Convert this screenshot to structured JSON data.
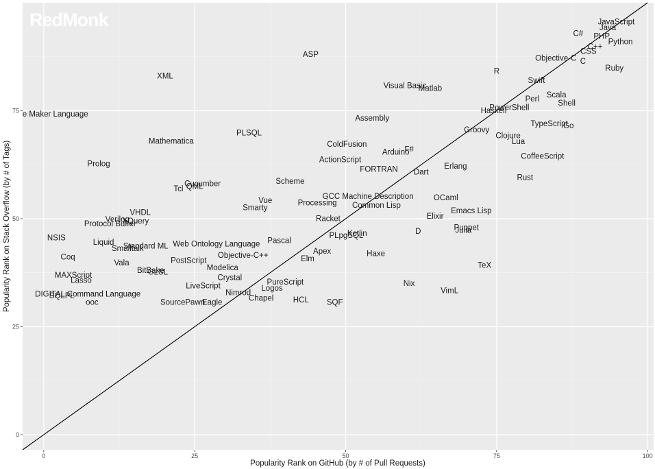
{
  "brand": "RedMonk",
  "chart_data": {
    "type": "scatter",
    "title": "",
    "xlabel": "Popularity Rank on GitHub (by # of Pull Requests)",
    "ylabel": "Popularity Rank on Stack Overflow (by # of Tags)",
    "xlim": [
      -3.5,
      101
    ],
    "ylim": [
      -3.5,
      100
    ],
    "x_ticks": [
      "0",
      "25",
      "50",
      "75",
      "100"
    ],
    "y_ticks": [
      "0",
      "25",
      "50",
      "75"
    ],
    "grid": true,
    "reference_line": "y = x",
    "colors": {
      "panel": "#ebebeb",
      "grid_major": "#ffffff",
      "text": "#1a1a1a",
      "tick_text": "#4d4d4d",
      "line": "#000000"
    },
    "points": [
      {
        "label": "JavaScript",
        "x": 94.8,
        "y": 95.6
      },
      {
        "label": "Java",
        "x": 93.4,
        "y": 94.3
      },
      {
        "label": "C#",
        "x": 88.5,
        "y": 92.9
      },
      {
        "label": "PHP",
        "x": 92.4,
        "y": 92.3
      },
      {
        "label": "Python",
        "x": 95.5,
        "y": 91.0
      },
      {
        "label": "C++",
        "x": 91.3,
        "y": 89.9
      },
      {
        "label": "CSS",
        "x": 90.2,
        "y": 88.8
      },
      {
        "label": "Objective-C",
        "x": 84.8,
        "y": 87.2
      },
      {
        "label": "C",
        "x": 89.3,
        "y": 86.5
      },
      {
        "label": "Ruby",
        "x": 94.5,
        "y": 84.9
      },
      {
        "label": "ASP",
        "x": 44.2,
        "y": 88.1
      },
      {
        "label": "R",
        "x": 75.0,
        "y": 84.2
      },
      {
        "label": "XML",
        "x": 20.1,
        "y": 83.1
      },
      {
        "label": "Swift",
        "x": 81.6,
        "y": 82.1
      },
      {
        "label": "Visual Basic",
        "x": 59.8,
        "y": 80.9
      },
      {
        "label": "Matlab",
        "x": 64.0,
        "y": 80.2
      },
      {
        "label": "Scala",
        "x": 84.9,
        "y": 78.7
      },
      {
        "label": "Perl",
        "x": 80.9,
        "y": 77.8
      },
      {
        "label": "Shell",
        "x": 86.6,
        "y": 76.8
      },
      {
        "label": "PowerShell",
        "x": 77.1,
        "y": 75.8
      },
      {
        "label": "Haskell",
        "x": 74.5,
        "y": 75.1
      },
      {
        "label": "Game Maker Language",
        "x": 0.5,
        "y": 74.3
      },
      {
        "label": "Assembly",
        "x": 54.4,
        "y": 73.3
      },
      {
        "label": "TypeScript",
        "x": 83.7,
        "y": 72.1
      },
      {
        "label": "Go",
        "x": 86.9,
        "y": 71.6
      },
      {
        "label": "Groovy",
        "x": 71.7,
        "y": 70.6
      },
      {
        "label": "PLSQL",
        "x": 34.0,
        "y": 69.9
      },
      {
        "label": "Clojure",
        "x": 76.9,
        "y": 69.3
      },
      {
        "label": "Mathematica",
        "x": 21.1,
        "y": 68.0
      },
      {
        "label": "Lua",
        "x": 78.6,
        "y": 67.9
      },
      {
        "label": "ColdFusion",
        "x": 50.2,
        "y": 67.3
      },
      {
        "label": "F#",
        "x": 60.5,
        "y": 66.1
      },
      {
        "label": "Arduino",
        "x": 58.3,
        "y": 65.5
      },
      {
        "label": "CoffeeScript",
        "x": 82.6,
        "y": 64.5
      },
      {
        "label": "ActionScript",
        "x": 49.1,
        "y": 63.7
      },
      {
        "label": "Prolog",
        "x": 9.1,
        "y": 62.8
      },
      {
        "label": "Erlang",
        "x": 68.2,
        "y": 62.2
      },
      {
        "label": "FORTRAN",
        "x": 55.5,
        "y": 61.5
      },
      {
        "label": "Dart",
        "x": 62.5,
        "y": 60.9
      },
      {
        "label": "Rust",
        "x": 79.7,
        "y": 59.6
      },
      {
        "label": "Scheme",
        "x": 40.8,
        "y": 58.7
      },
      {
        "label": "Cucumber",
        "x": 26.3,
        "y": 58.2
      },
      {
        "label": "QML",
        "x": 25.0,
        "y": 57.5
      },
      {
        "label": "Tcl",
        "x": 22.3,
        "y": 57.0
      },
      {
        "label": "GCC Machine Description",
        "x": 53.7,
        "y": 55.2
      },
      {
        "label": "OCaml",
        "x": 66.6,
        "y": 54.9
      },
      {
        "label": "Vue",
        "x": 36.7,
        "y": 54.3
      },
      {
        "label": "Processing",
        "x": 45.3,
        "y": 53.7
      },
      {
        "label": "Common Lisp",
        "x": 55.1,
        "y": 53.2
      },
      {
        "label": "Smarty",
        "x": 35.0,
        "y": 52.6
      },
      {
        "label": "Emacs Lisp",
        "x": 70.8,
        "y": 51.9
      },
      {
        "label": "VHDL",
        "x": 16.0,
        "y": 51.5
      },
      {
        "label": "Elixir",
        "x": 64.8,
        "y": 50.6
      },
      {
        "label": "Racket",
        "x": 47.1,
        "y": 50.1
      },
      {
        "label": "Verilog",
        "x": 12.2,
        "y": 49.9
      },
      {
        "label": "XQuery",
        "x": 15.2,
        "y": 49.5
      },
      {
        "label": "Protocol Buffer",
        "x": 11.0,
        "y": 48.9
      },
      {
        "label": "Puppet",
        "x": 70.0,
        "y": 48.0
      },
      {
        "label": "Julia",
        "x": 69.5,
        "y": 47.4
      },
      {
        "label": "D",
        "x": 62.0,
        "y": 47.1
      },
      {
        "label": "Kotlin",
        "x": 51.9,
        "y": 46.7
      },
      {
        "label": "PLpgSQL",
        "x": 50.1,
        "y": 46.2
      },
      {
        "label": "NSIS",
        "x": 2.1,
        "y": 45.6
      },
      {
        "label": "Pascal",
        "x": 39.0,
        "y": 45.0
      },
      {
        "label": "Liquid",
        "x": 9.9,
        "y": 44.6
      },
      {
        "label": "Web Ontology Language",
        "x": 28.6,
        "y": 44.2
      },
      {
        "label": "Standard ML",
        "x": 16.9,
        "y": 43.7
      },
      {
        "label": "Smalltalk",
        "x": 13.9,
        "y": 43.2
      },
      {
        "label": "Apex",
        "x": 46.1,
        "y": 42.5
      },
      {
        "label": "Haxe",
        "x": 55.0,
        "y": 42.0
      },
      {
        "label": "Objective-C++",
        "x": 33.0,
        "y": 41.6
      },
      {
        "label": "Coq",
        "x": 4.0,
        "y": 41.2
      },
      {
        "label": "Elm",
        "x": 43.7,
        "y": 40.8
      },
      {
        "label": "PostScript",
        "x": 24.0,
        "y": 40.4
      },
      {
        "label": "Vala",
        "x": 12.9,
        "y": 39.8
      },
      {
        "label": "TeX",
        "x": 73.0,
        "y": 39.3
      },
      {
        "label": "Modelica",
        "x": 29.6,
        "y": 38.7
      },
      {
        "label": "BitBake",
        "x": 17.7,
        "y": 38.1
      },
      {
        "label": "GLSL",
        "x": 18.9,
        "y": 37.7
      },
      {
        "label": "MAXScript",
        "x": 4.9,
        "y": 37.0
      },
      {
        "label": "Crystal",
        "x": 30.8,
        "y": 36.4
      },
      {
        "label": "Lasso",
        "x": 6.2,
        "y": 35.8
      },
      {
        "label": "PureScript",
        "x": 40.0,
        "y": 35.4
      },
      {
        "label": "Nix",
        "x": 60.5,
        "y": 35.1
      },
      {
        "label": "LiveScript",
        "x": 26.4,
        "y": 34.5
      },
      {
        "label": "Logos",
        "x": 37.8,
        "y": 34.0
      },
      {
        "label": "VimL",
        "x": 67.2,
        "y": 33.4
      },
      {
        "label": "Nimrod",
        "x": 32.2,
        "y": 32.9
      },
      {
        "label": "DIGITAL Command Language",
        "x": 7.3,
        "y": 32.6
      },
      {
        "label": "SQLPL",
        "x": 3.0,
        "y": 32.2
      },
      {
        "label": "Chapel",
        "x": 36.0,
        "y": 31.7
      },
      {
        "label": "HCL",
        "x": 42.6,
        "y": 31.3
      },
      {
        "label": "ooc",
        "x": 8.0,
        "y": 30.7
      },
      {
        "label": "SourcePawn",
        "x": 23.0,
        "y": 30.7
      },
      {
        "label": "Eagle",
        "x": 27.9,
        "y": 30.7
      },
      {
        "label": "SQF",
        "x": 48.2,
        "y": 30.7
      }
    ]
  }
}
